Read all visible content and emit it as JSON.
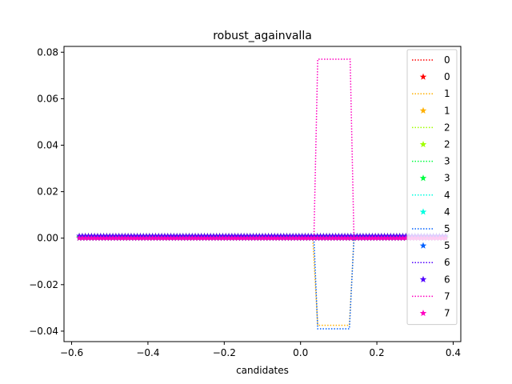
{
  "chart_data": {
    "type": "line",
    "title": "robust_againvalla",
    "xlabel": "candidates",
    "ylabel": "",
    "xlim": [
      -0.62,
      0.42
    ],
    "ylim": [
      -0.0445,
      0.0825
    ],
    "xticks": [
      -0.6,
      -0.4,
      -0.2,
      0.0,
      0.2,
      0.4
    ],
    "xtick_labels": [
      "−0.6",
      "−0.4",
      "−0.2",
      "0.0",
      "0.2",
      "0.4"
    ],
    "yticks": [
      -0.04,
      -0.02,
      0.0,
      0.02,
      0.04,
      0.06,
      0.08
    ],
    "ytick_labels": [
      "−0.04",
      "−0.02",
      "0.00",
      "0.02",
      "0.04",
      "0.06",
      "0.08"
    ],
    "grid": false,
    "legend_position": "right",
    "legend": [
      {
        "label": "0",
        "style": "line",
        "color": "#ff0000"
      },
      {
        "label": "0",
        "style": "marker",
        "color": "#ff0000"
      },
      {
        "label": "1",
        "style": "line",
        "color": "#ffb000"
      },
      {
        "label": "1",
        "style": "marker",
        "color": "#ffb000"
      },
      {
        "label": "2",
        "style": "line",
        "color": "#a0ff00"
      },
      {
        "label": "2",
        "style": "marker",
        "color": "#a0ff00"
      },
      {
        "label": "3",
        "style": "line",
        "color": "#00ff40"
      },
      {
        "label": "3",
        "style": "marker",
        "color": "#00ff40"
      },
      {
        "label": "4",
        "style": "line",
        "color": "#00ffe0"
      },
      {
        "label": "4",
        "style": "marker",
        "color": "#00ffe0"
      },
      {
        "label": "5",
        "style": "line",
        "color": "#0060ff"
      },
      {
        "label": "5",
        "style": "marker",
        "color": "#0060ff"
      },
      {
        "label": "6",
        "style": "line",
        "color": "#5000ff"
      },
      {
        "label": "6",
        "style": "marker",
        "color": "#5000ff"
      },
      {
        "label": "7",
        "style": "line",
        "color": "#ff00c0"
      },
      {
        "label": "7",
        "style": "marker",
        "color": "#ff00c0"
      }
    ],
    "series": [
      {
        "name": "0",
        "color": "#ff0000",
        "x": [
          -0.58,
          0.032,
          0.038,
          0.128,
          0.135,
          0.38
        ],
        "y": [
          0.0,
          0.0,
          0.0,
          0.0,
          0.0,
          0.0
        ]
      },
      {
        "name": "1",
        "color": "#ffb000",
        "x": [
          -0.58,
          0.032,
          0.045,
          0.128,
          0.14,
          0.38
        ],
        "y": [
          0.0,
          0.0,
          -0.0375,
          -0.0375,
          0.0,
          0.0
        ]
      },
      {
        "name": "2",
        "color": "#a0ff00",
        "x": [
          -0.58,
          0.032,
          0.038,
          0.128,
          0.135,
          0.38
        ],
        "y": [
          0.001,
          0.001,
          0.001,
          0.001,
          0.001,
          0.001
        ]
      },
      {
        "name": "3",
        "color": "#00ff40",
        "x": [
          -0.58,
          0.032,
          0.038,
          0.128,
          0.135,
          0.38
        ],
        "y": [
          0.0005,
          0.0005,
          0.0005,
          0.0005,
          0.0005,
          0.0005
        ]
      },
      {
        "name": "4",
        "color": "#00ffe0",
        "x": [
          -0.58,
          0.032,
          0.038,
          0.128,
          0.135,
          0.38
        ],
        "y": [
          0.0,
          0.0,
          0.0,
          0.0,
          0.0,
          0.0
        ]
      },
      {
        "name": "5",
        "color": "#0060ff",
        "x": [
          -0.58,
          0.035,
          0.045,
          0.128,
          0.14,
          0.38
        ],
        "y": [
          0.0,
          0.0,
          -0.039,
          -0.039,
          0.0,
          0.0
        ]
      },
      {
        "name": "6",
        "color": "#5000ff",
        "x": [
          -0.58,
          0.032,
          0.038,
          0.128,
          0.135,
          0.38
        ],
        "y": [
          0.001,
          0.001,
          0.001,
          0.001,
          0.001,
          0.001
        ]
      },
      {
        "name": "7",
        "color": "#ff00c0",
        "x": [
          -0.58,
          0.035,
          0.045,
          0.13,
          0.14,
          0.38
        ],
        "y": [
          0.0,
          0.0,
          0.077,
          0.077,
          0.0,
          0.0
        ]
      }
    ]
  }
}
